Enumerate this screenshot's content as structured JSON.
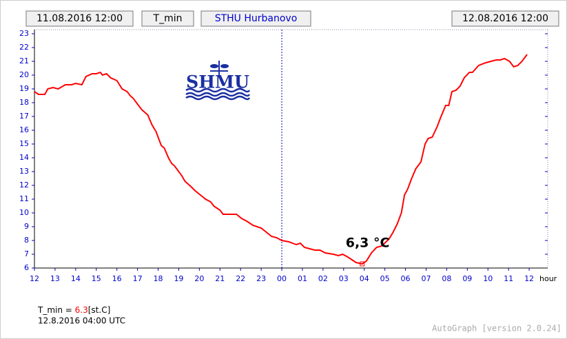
{
  "header": {
    "start": "11.08.2016 12:00",
    "variable": "T_min",
    "station": "STHU Hurbanovo",
    "end": "12.08.2016 12:00"
  },
  "logo": "SHMU",
  "chart_data": {
    "type": "line",
    "x": [
      0,
      0.2,
      0.5,
      0.65,
      0.9,
      1.15,
      1.5,
      1.8,
      2.0,
      2.3,
      2.5,
      2.8,
      3.0,
      3.2,
      3.3,
      3.5,
      3.7,
      4.0,
      4.25,
      4.5,
      4.65,
      4.8,
      5.0,
      5.2,
      5.5,
      5.7,
      5.9,
      6.15,
      6.3,
      6.5,
      6.65,
      6.8,
      7.0,
      7.15,
      7.3,
      7.6,
      7.8,
      8.05,
      8.3,
      8.55,
      8.7,
      9.0,
      9.15,
      9.8,
      10.05,
      10.3,
      10.6,
      11.0,
      11.25,
      11.5,
      11.75,
      12.0,
      12.35,
      12.7,
      12.9,
      13.1,
      13.35,
      13.6,
      13.85,
      14.1,
      14.5,
      14.75,
      14.95,
      15.2,
      15.4,
      15.6,
      15.9,
      16.1,
      16.35,
      16.6,
      16.85,
      17.2,
      17.4,
      17.6,
      17.8,
      17.95,
      18.1,
      18.3,
      18.5,
      18.75,
      18.95,
      19.1,
      19.3,
      19.55,
      19.7,
      19.95,
      20.1,
      20.25,
      20.45,
      20.65,
      20.85,
      21.1,
      21.25,
      21.55,
      21.9,
      22.15,
      22.4,
      22.6,
      22.8,
      23.05,
      23.25,
      23.45,
      23.65,
      23.9
    ],
    "series": [
      {
        "name": "T_min",
        "color": "#ff0000",
        "values": [
          18.8,
          18.6,
          18.6,
          19.0,
          19.1,
          19.0,
          19.3,
          19.3,
          19.4,
          19.3,
          19.9,
          20.1,
          20.1,
          20.2,
          20.0,
          20.1,
          19.8,
          19.6,
          19.0,
          18.8,
          18.5,
          18.3,
          17.9,
          17.5,
          17.1,
          16.4,
          15.9,
          14.9,
          14.7,
          14.0,
          13.6,
          13.4,
          13.0,
          12.7,
          12.3,
          11.9,
          11.6,
          11.3,
          11.0,
          10.8,
          10.5,
          10.2,
          9.9,
          9.9,
          9.6,
          9.4,
          9.1,
          8.9,
          8.6,
          8.3,
          8.2,
          8.0,
          7.9,
          7.7,
          7.8,
          7.5,
          7.4,
          7.3,
          7.3,
          7.1,
          7.0,
          6.9,
          7.0,
          6.8,
          6.6,
          6.4,
          6.3,
          6.5,
          7.1,
          7.5,
          7.6,
          8.1,
          8.6,
          9.2,
          10.0,
          11.3,
          11.7,
          12.5,
          13.2,
          13.7,
          15.0,
          15.4,
          15.5,
          16.3,
          16.9,
          17.8,
          17.8,
          18.8,
          18.9,
          19.2,
          19.8,
          20.2,
          20.2,
          20.7,
          20.9,
          21.0,
          21.1,
          21.1,
          21.2,
          21.0,
          20.6,
          20.7,
          21.0,
          21.5
        ]
      }
    ],
    "xlim": [
      0,
      24.9
    ],
    "ylim": [
      6,
      23.3
    ],
    "xticks": [
      {
        "value": 0,
        "label": "12"
      },
      {
        "value": 1,
        "label": "13"
      },
      {
        "value": 2,
        "label": "14"
      },
      {
        "value": 3,
        "label": "15"
      },
      {
        "value": 4,
        "label": "16"
      },
      {
        "value": 5,
        "label": "17"
      },
      {
        "value": 6,
        "label": "18"
      },
      {
        "value": 7,
        "label": "19"
      },
      {
        "value": 8,
        "label": "20"
      },
      {
        "value": 9,
        "label": "21"
      },
      {
        "value": 10,
        "label": "22"
      },
      {
        "value": 11,
        "label": "23"
      },
      {
        "value": 12,
        "label": "00"
      },
      {
        "value": 13,
        "label": "01"
      },
      {
        "value": 14,
        "label": "02"
      },
      {
        "value": 15,
        "label": "03"
      },
      {
        "value": 16,
        "label": "04"
      },
      {
        "value": 17,
        "label": "05"
      },
      {
        "value": 18,
        "label": "06"
      },
      {
        "value": 19,
        "label": "07"
      },
      {
        "value": 20,
        "label": "08"
      },
      {
        "value": 21,
        "label": "09"
      },
      {
        "value": 22,
        "label": "10"
      },
      {
        "value": 23,
        "label": "11"
      },
      {
        "value": 24,
        "label": "12"
      }
    ],
    "yticks": [
      6,
      7,
      8,
      9,
      10,
      11,
      12,
      13,
      14,
      15,
      16,
      17,
      18,
      19,
      20,
      21,
      22,
      23
    ],
    "xlabel": "hour",
    "vlines": [
      12
    ],
    "min_index": 66,
    "annotation": "6,3 °C",
    "tick_color": "#0000cc"
  },
  "footer": {
    "label": "T_min = ",
    "value": 6.3,
    "unit": "[st.C]",
    "time": "12.8.2016 04:00 UTC",
    "credit": "AutoGraph [version 2.0.24]"
  }
}
